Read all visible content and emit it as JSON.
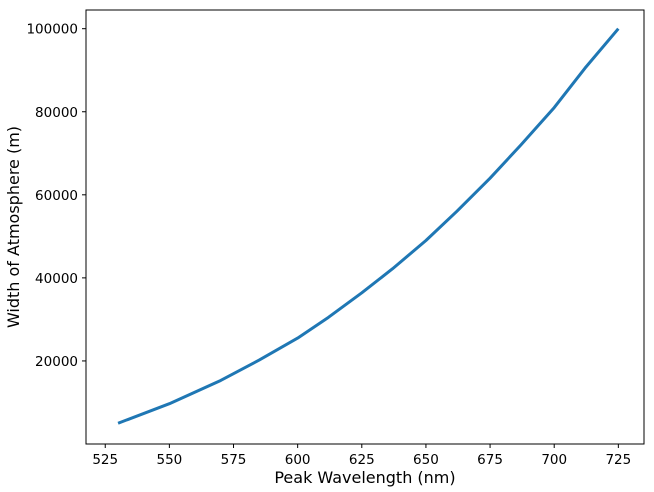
{
  "chart_data": {
    "type": "line",
    "xlabel": "Peak Wavelength (nm)",
    "ylabel": "Width of Atmosphere (m)",
    "xlim": [
      517.5,
      735
    ],
    "ylim": [
      0,
      104500
    ],
    "xticks": [
      525,
      550,
      575,
      600,
      625,
      650,
      675,
      700,
      725
    ],
    "yticks": [
      20000,
      40000,
      60000,
      80000,
      100000
    ],
    "grid": false,
    "line_color": "#1f77b4",
    "series": [
      {
        "x": [
          530,
          550,
          570,
          585,
          600,
          612,
          625,
          637,
          650,
          662,
          675,
          687,
          700,
          712,
          725
        ],
        "y": [
          5000,
          9700,
          15300,
          20200,
          25500,
          30500,
          36400,
          42200,
          49000,
          56000,
          64000,
          72000,
          81000,
          90500,
          100000
        ]
      }
    ]
  }
}
